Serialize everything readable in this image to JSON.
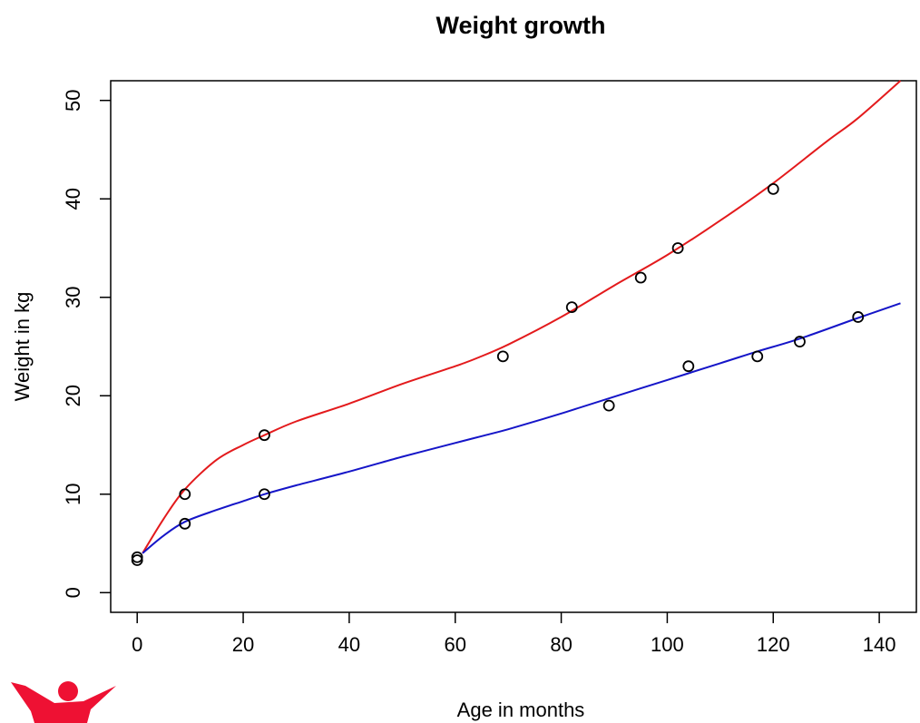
{
  "chart_data": {
    "type": "scatter",
    "title": "Weight growth",
    "xlabel": "Age in months",
    "ylabel": "Weight in kg",
    "xlim": [
      -5,
      147
    ],
    "ylim": [
      -2,
      52
    ],
    "x_ticks": [
      0,
      20,
      40,
      60,
      80,
      100,
      120,
      140
    ],
    "y_ticks": [
      0,
      10,
      20,
      30,
      40,
      50
    ],
    "points": [
      {
        "x": 0,
        "y": 3.3
      },
      {
        "x": 0,
        "y": 3.6
      },
      {
        "x": 9,
        "y": 10
      },
      {
        "x": 9,
        "y": 7
      },
      {
        "x": 24,
        "y": 16
      },
      {
        "x": 24,
        "y": 10
      },
      {
        "x": 69,
        "y": 24
      },
      {
        "x": 82,
        "y": 29
      },
      {
        "x": 89,
        "y": 19
      },
      {
        "x": 95,
        "y": 32
      },
      {
        "x": 102,
        "y": 35
      },
      {
        "x": 104,
        "y": 23
      },
      {
        "x": 117,
        "y": 24
      },
      {
        "x": 120,
        "y": 41
      },
      {
        "x": 125,
        "y": 25.5
      },
      {
        "x": 136,
        "y": 28
      }
    ],
    "series": [
      {
        "color": "#e31a1c",
        "x": [
          1,
          5,
          9,
          15,
          20,
          24,
          30,
          40,
          50,
          60,
          64,
          70,
          80,
          90,
          100,
          110,
          120,
          130,
          136,
          144
        ],
        "y": [
          4,
          7.5,
          10.5,
          13.5,
          15,
          16,
          17.4,
          19.2,
          21.2,
          23,
          23.8,
          25.2,
          28,
          31.2,
          34.3,
          37.8,
          41.6,
          45.8,
          48.2,
          52
        ]
      },
      {
        "color": "#1515c8",
        "x": [
          1,
          5,
          9,
          15,
          20,
          24,
          30,
          40,
          50,
          60,
          65,
          70,
          80,
          90,
          100,
          110,
          117,
          125,
          136,
          144
        ],
        "y": [
          4,
          5.8,
          7.2,
          8.4,
          9.3,
          10,
          10.9,
          12.3,
          13.8,
          15.2,
          15.9,
          16.6,
          18.2,
          19.9,
          21.6,
          23.3,
          24.5,
          25.8,
          27.9,
          29.4
        ]
      }
    ],
    "grid": false,
    "point_style": "open-circle"
  },
  "logo": {
    "name": "red-figure-logo",
    "color": "#ee1133"
  }
}
